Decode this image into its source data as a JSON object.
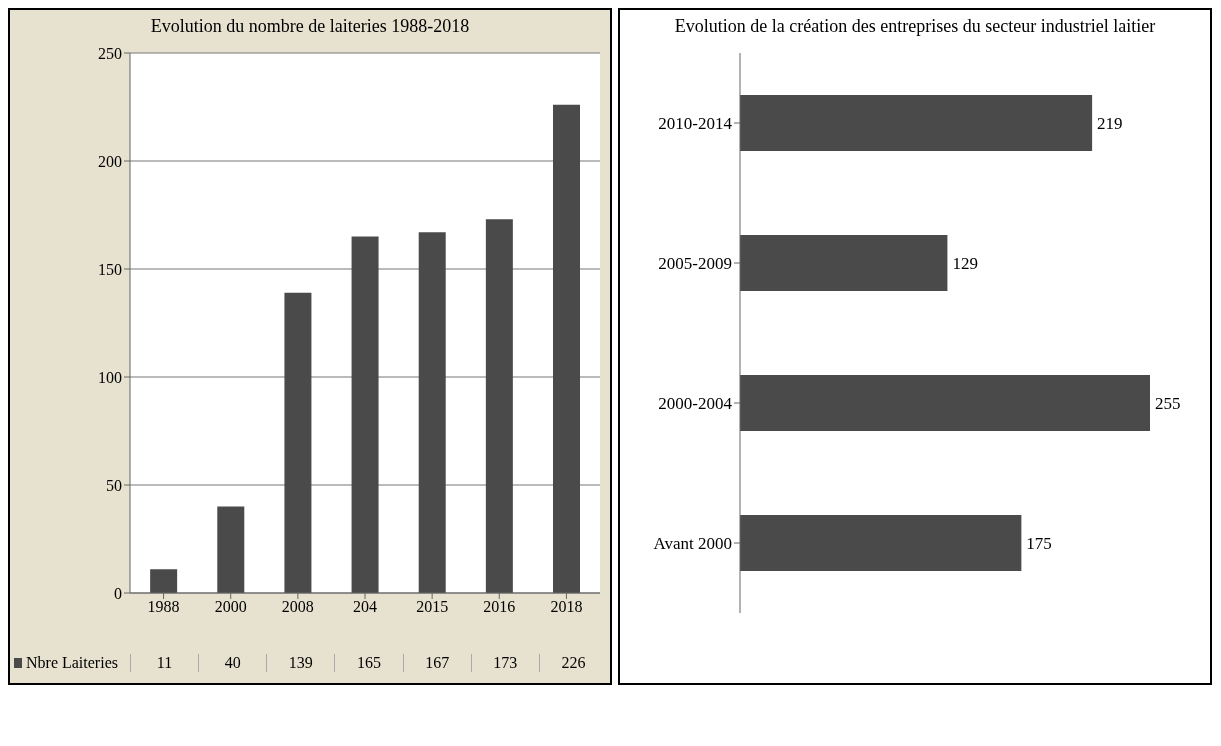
{
  "chart_data": [
    {
      "type": "bar",
      "title": "Evolution du nombre de laiteries 1988-2018",
      "categories": [
        "1988",
        "2000",
        "2008",
        "204",
        "2015",
        "2016",
        "2018"
      ],
      "series": [
        {
          "name": "Nbre Laiteries",
          "color": "#4a4a4a",
          "values": [
            11,
            40,
            139,
            165,
            167,
            173,
            226
          ]
        }
      ],
      "ylim": [
        0,
        250
      ],
      "yticks": [
        0,
        50,
        100,
        150,
        200,
        250
      ],
      "grid": "y",
      "data_labels": true
    },
    {
      "type": "bar",
      "orientation": "horizontal",
      "title": "Evolution de la création des entreprises du secteur industriel laitier",
      "categories": [
        "2010-2014",
        "2005-2009",
        "2000-2004",
        "Avant 2000"
      ],
      "series": [
        {
          "color": "#4a4a4a",
          "values": [
            219,
            129,
            255,
            175
          ]
        }
      ],
      "data_labels": true,
      "tick_labels": "y"
    }
  ]
}
